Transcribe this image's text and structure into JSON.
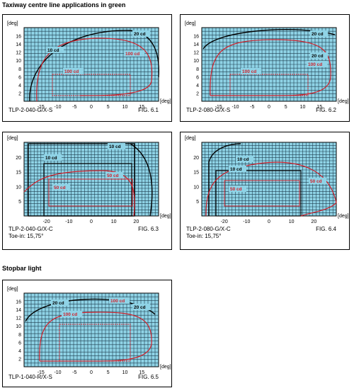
{
  "sections": {
    "taxiway_title": "Taxiway centre line applications in green",
    "stopbar_title": "Stopbar light"
  },
  "axis_unit": "[deg]",
  "colors": {
    "grid_bg": "#8fd3e6",
    "grid_line": "#1f3f4f",
    "red": "#d0202a",
    "black": "#000000"
  },
  "panels": [
    {
      "id": "fig-6-1",
      "caption": "TLP-2-040-G/X-S",
      "caption2": "",
      "fig": "FIG. 6.1",
      "xticks": [
        "-15",
        "-10",
        "-5",
        "0",
        "5",
        "10",
        "15"
      ],
      "yticks": [
        "2",
        "4",
        "6",
        "8",
        "10",
        "12",
        "14",
        "16"
      ],
      "labels": [
        {
          "t": "20 cd",
          "color": "#000"
        },
        {
          "t": "10 cd",
          "color": "#000"
        },
        {
          "t": "100 cd",
          "color": "#d0202a"
        },
        {
          "t": "100 cd",
          "color": "#d0202a"
        }
      ]
    },
    {
      "id": "fig-6-2",
      "caption": "TLP-2-080-G/X-S",
      "caption2": "",
      "fig": "FIG. 6.2",
      "xticks": [
        "-15",
        "-10",
        "-5",
        "0",
        "5",
        "10",
        "15"
      ],
      "yticks": [
        "2",
        "4",
        "6",
        "8",
        "10",
        "12",
        "14",
        "16"
      ],
      "labels": [
        {
          "t": "20 cd",
          "color": "#000"
        },
        {
          "t": "20 cd",
          "color": "#000"
        },
        {
          "t": "100 cd",
          "color": "#d0202a"
        },
        {
          "t": "100 cd",
          "color": "#d0202a"
        }
      ]
    },
    {
      "id": "fig-6-3",
      "caption": "TLP-2-040-G/X-C",
      "caption2": "Toe-in: 15,75°",
      "fig": "FIG. 6.3",
      "xticks": [
        "-20",
        "-10",
        "0",
        "10",
        "20"
      ],
      "yticks": [
        "5",
        "10",
        "15",
        "20"
      ],
      "labels": [
        {
          "t": "10 cd",
          "color": "#000"
        },
        {
          "t": "10 cd",
          "color": "#000"
        },
        {
          "t": "50 cd",
          "color": "#d0202a"
        },
        {
          "t": "50 cd",
          "color": "#d0202a"
        }
      ]
    },
    {
      "id": "fig-6-4",
      "caption": "TLP-2-080-G/X-C",
      "caption2": "Toe-in: 15,75°",
      "fig": "FIG. 6.4",
      "xticks": [
        "-20",
        "-10",
        "0",
        "10",
        "20"
      ],
      "yticks": [
        "5",
        "10",
        "15",
        "20"
      ],
      "labels": [
        {
          "t": "10 cd",
          "color": "#000"
        },
        {
          "t": "10 cd",
          "color": "#000"
        },
        {
          "t": "50 cd",
          "color": "#d0202a"
        },
        {
          "t": "50 cd",
          "color": "#d0202a"
        }
      ]
    },
    {
      "id": "fig-6-5",
      "caption": "TLP-1-040-R/X-S",
      "caption2": "",
      "fig": "FIG. 6.5",
      "xticks": [
        "-15",
        "-10",
        "-5",
        "0",
        "5",
        "10",
        "15"
      ],
      "yticks": [
        "2",
        "4",
        "6",
        "8",
        "10",
        "12",
        "14",
        "16"
      ],
      "labels": [
        {
          "t": "20 cd",
          "color": "#000"
        },
        {
          "t": "20 cd",
          "color": "#000"
        },
        {
          "t": "100 cd",
          "color": "#d0202a"
        },
        {
          "t": "100 cd",
          "color": "#d0202a"
        }
      ]
    }
  ]
}
